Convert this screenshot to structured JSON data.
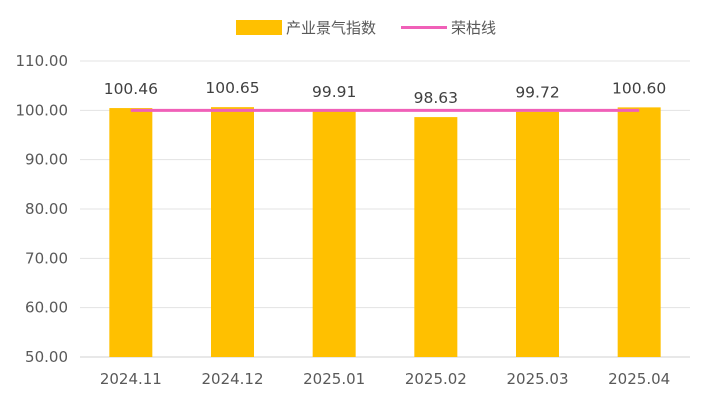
{
  "chart_data": {
    "type": "bar",
    "categories": [
      "2024.11",
      "2024.12",
      "2025.01",
      "2025.02",
      "2025.03",
      "2025.04"
    ],
    "series": [
      {
        "name": "产业景气指数",
        "type": "bar",
        "values": [
          100.46,
          100.65,
          99.91,
          98.63,
          99.72,
          100.6
        ],
        "color": "#FFC000"
      },
      {
        "name": "荣枯线",
        "type": "line",
        "values": [
          100,
          100,
          100,
          100,
          100,
          100
        ],
        "color": "#F060B8"
      }
    ],
    "data_labels": [
      "100.46",
      "100.65",
      "99.91",
      "98.63",
      "99.72",
      "100.60"
    ],
    "y_ticks": [
      "50.00",
      "60.00",
      "70.00",
      "80.00",
      "90.00",
      "100.00",
      "110.00"
    ],
    "ylim": [
      50,
      110
    ],
    "grid": true,
    "legend_position": "top"
  }
}
